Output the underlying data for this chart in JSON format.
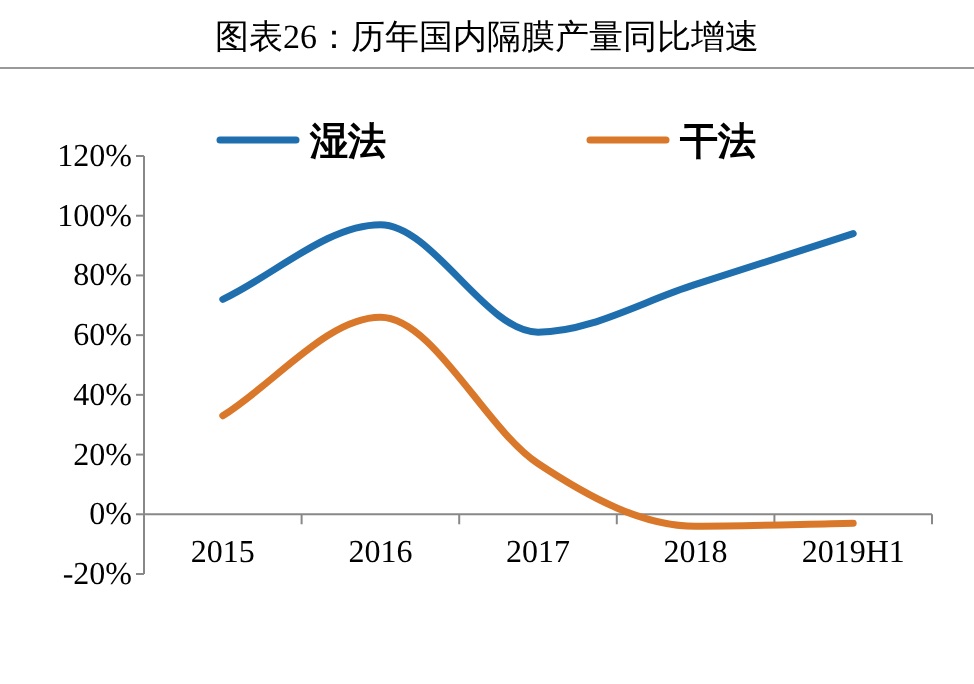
{
  "chart_data": {
    "type": "line",
    "title": "图表26：历年国内隔膜产量同比增速",
    "categories": [
      "2015",
      "2016",
      "2017",
      "2018",
      "2019H1"
    ],
    "series": [
      {
        "name": "湿法",
        "color": "#1f6fae",
        "values": [
          72,
          97,
          61,
          77,
          94
        ]
      },
      {
        "name": "干法",
        "color": "#d9782a",
        "values": [
          33,
          66,
          17,
          -4,
          -3
        ]
      }
    ],
    "ylim": [
      -20,
      120
    ],
    "yticks": [
      {
        "value": -20,
        "label": "-20%"
      },
      {
        "value": 0,
        "label": "0%"
      },
      {
        "value": 20,
        "label": "20%"
      },
      {
        "value": 40,
        "label": "40%"
      },
      {
        "value": 60,
        "label": "60%"
      },
      {
        "value": 80,
        "label": "80%"
      },
      {
        "value": 100,
        "label": "100%"
      },
      {
        "value": 120,
        "label": "120%"
      }
    ],
    "grid": false,
    "legend": "top",
    "marker": "none",
    "line_style": "solid"
  }
}
